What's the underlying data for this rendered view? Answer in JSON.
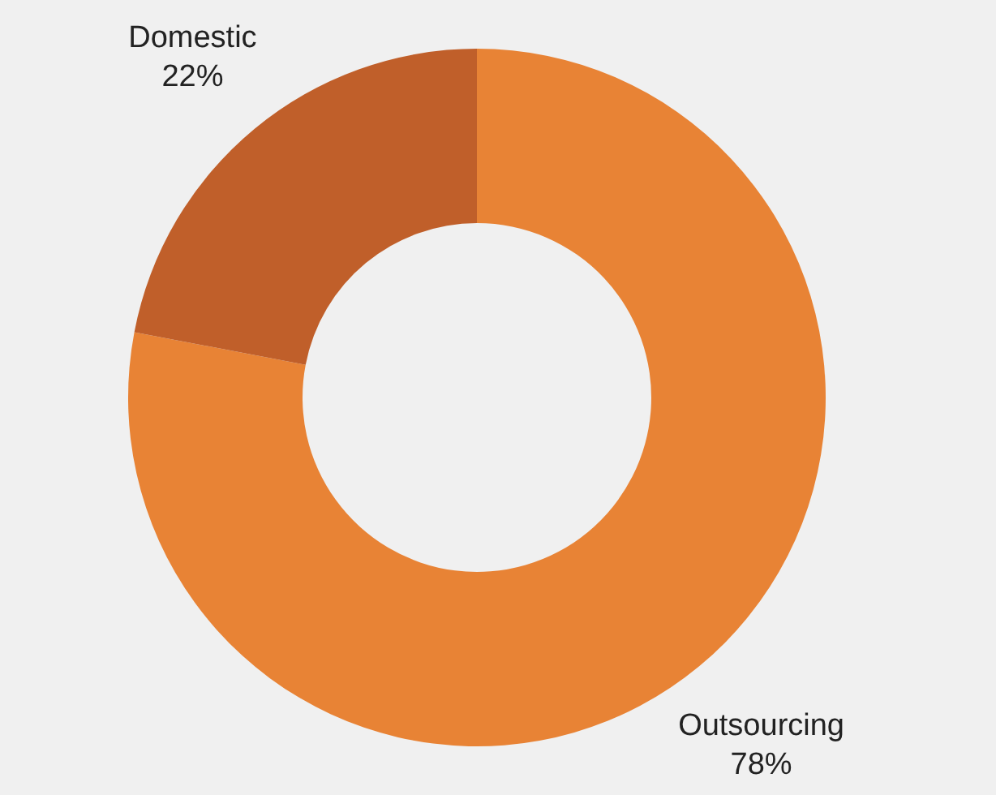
{
  "chart_data": {
    "type": "donut",
    "categories": [
      "Outsourcing",
      "Domestic"
    ],
    "values": [
      78,
      22
    ],
    "colors": [
      "#e88335",
      "#c05f2a"
    ],
    "value_labels": [
      "78%",
      "22%"
    ],
    "legend": false
  }
}
